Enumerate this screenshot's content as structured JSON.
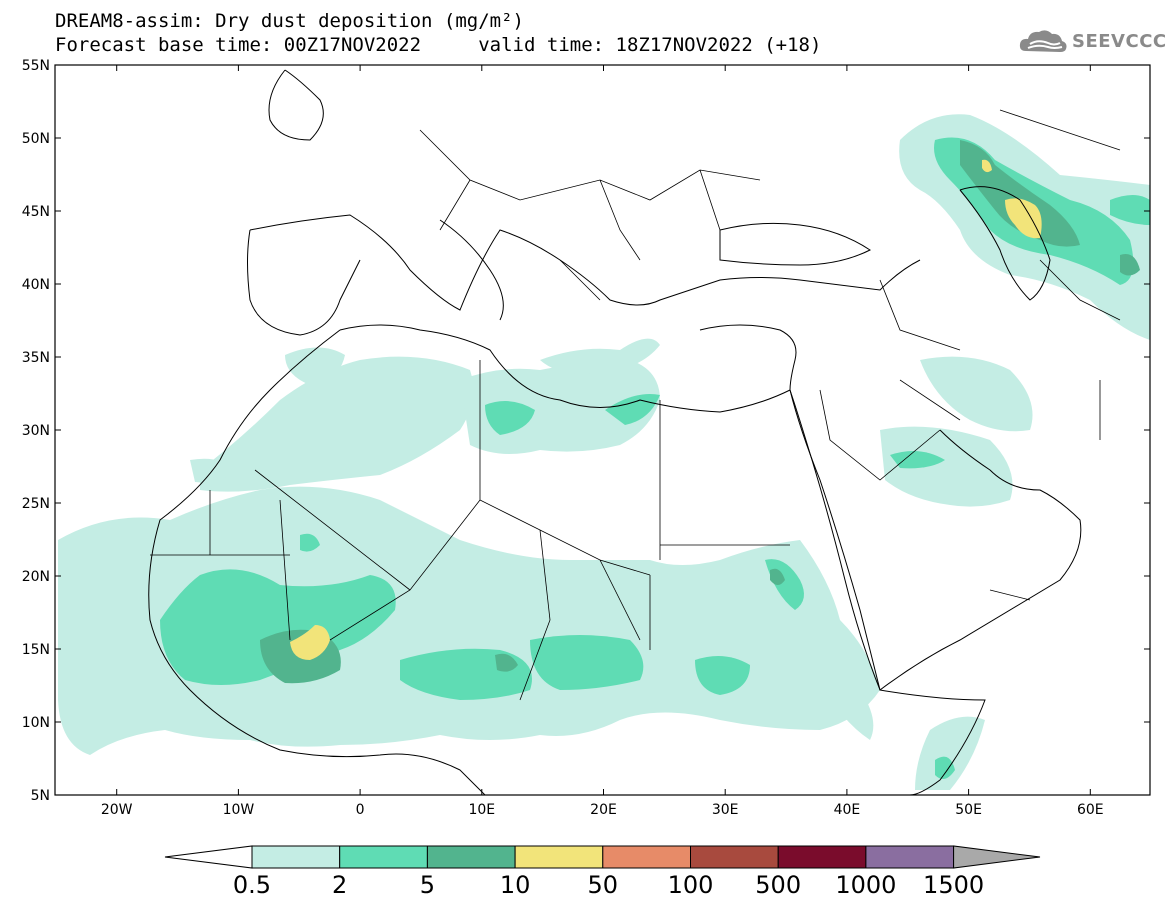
{
  "header": {
    "title_line1": "DREAM8-assim: Dry dust deposition (mg/m²)",
    "title_line2": "Forecast base time: 00Z17NOV2022     valid time: 18Z17NOV2022 (+18)"
  },
  "logo": {
    "text": "SEEVCCC",
    "icon": "cloud-icon"
  },
  "map": {
    "lat_labels": [
      "55N",
      "50N",
      "45N",
      "40N",
      "35N",
      "30N",
      "25N",
      "20N",
      "15N",
      "10N",
      "5N"
    ],
    "lon_labels": [
      "20W",
      "10W",
      "0",
      "10E",
      "20E",
      "30E",
      "40E",
      "50E",
      "60E"
    ]
  },
  "colorbar": {
    "labels": [
      "0.5",
      "2",
      "5",
      "10",
      "50",
      "100",
      "500",
      "1000",
      "1500"
    ],
    "colors": [
      "#c4ede4",
      "#5fdcb4",
      "#52b48e",
      "#f2e47a",
      "#e78b68",
      "#a84a3e",
      "#7a0c2c",
      "#8a6ea0"
    ],
    "below_color": "#ffffff",
    "above_color": "#a9a9a9"
  }
}
